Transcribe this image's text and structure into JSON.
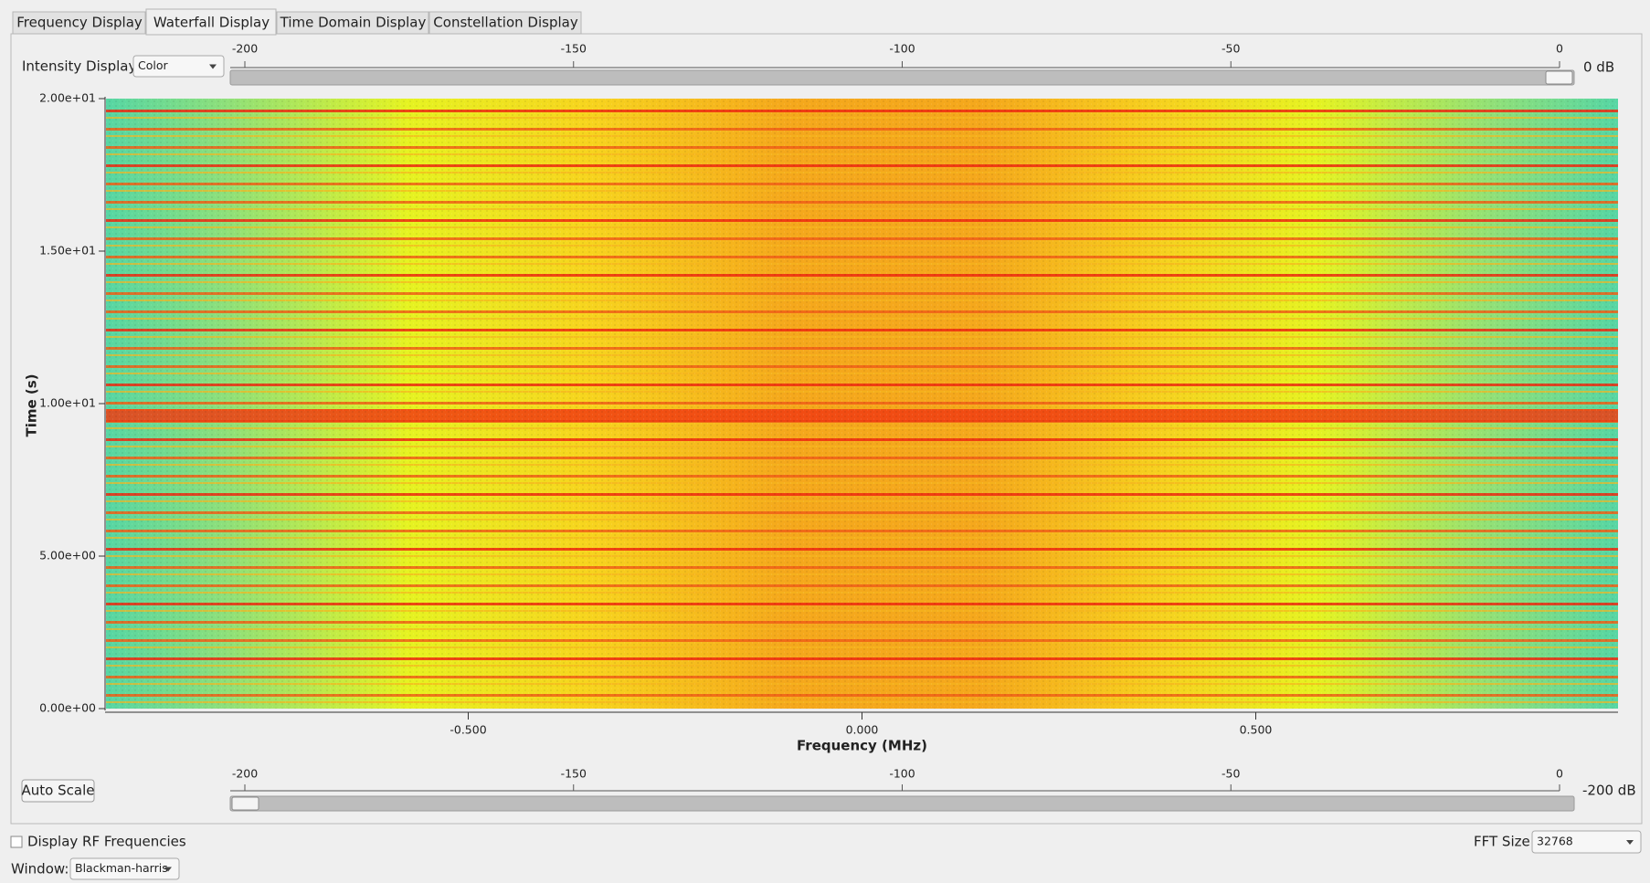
{
  "tabs": [
    "Frequency Display",
    "Waterfall Display",
    "Time Domain Display",
    "Constellation Display"
  ],
  "active_tab": 1,
  "intensity": {
    "label": "Intensity Display:",
    "value": "Color"
  },
  "max_slider": {
    "range": [
      -200,
      0
    ],
    "ticks": [
      -200,
      -150,
      -100,
      -50,
      0
    ],
    "value": 0,
    "label": "0 dB"
  },
  "min_slider": {
    "range": [
      -200,
      0
    ],
    "ticks": [
      -200,
      -150,
      -100,
      -50,
      0
    ],
    "value": -200,
    "label": "-200 dB"
  },
  "chart_data": {
    "type": "waterfall",
    "xlabel": "Frequency (MHz)",
    "ylabel": "Time (s)",
    "xlim": [
      -0.96,
      0.96
    ],
    "xticks": [
      {
        "value": -0.5,
        "label": "-0.500"
      },
      {
        "value": 0,
        "label": "0.000"
      },
      {
        "value": 0.5,
        "label": "0.500"
      }
    ],
    "ylim": [
      0,
      20
    ],
    "yticks": [
      {
        "value": 0,
        "label": "0.00e+00"
      },
      {
        "value": 5,
        "label": "5.00e+00"
      },
      {
        "value": 10,
        "label": "1.00e+01"
      },
      {
        "value": 15,
        "label": "1.50e+01"
      },
      {
        "value": 20,
        "label": "2.00e+01"
      }
    ]
  },
  "auto_scale": "Auto Scale",
  "rf_checkbox": {
    "label": "Display RF Frequencies",
    "checked": false
  },
  "fft": {
    "label": "FFT Size:",
    "value": "32768"
  },
  "window": {
    "label": "Window:",
    "value": "Blackman-harris"
  }
}
